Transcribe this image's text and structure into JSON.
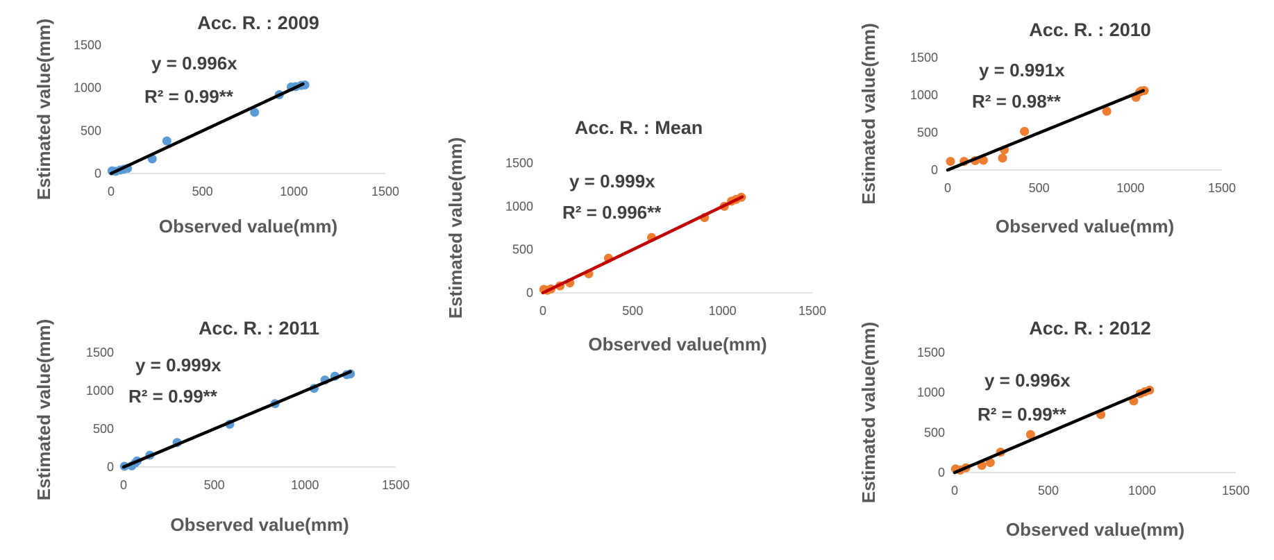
{
  "chart_data": [
    {
      "id": "chart-2009",
      "type": "scatter",
      "title": "Acc. R. : 2009",
      "xlabel": "Observed value(mm)",
      "ylabel": "Estimated value(mm)",
      "xlim": [
        0,
        1500
      ],
      "ylim": [
        0,
        1500
      ],
      "xticks": [
        "0",
        "500",
        "1000",
        "1500"
      ],
      "yticks": [
        "0",
        "500",
        "1000",
        "1500"
      ],
      "grid": false,
      "marker_color": "#5B9BD5",
      "line_color": "#000000",
      "equation": "y = 0.996x",
      "r2": "R² = 0.99**",
      "trendline": {
        "slope": 0.996,
        "x_range": [
          0,
          1050
        ]
      },
      "points": [
        {
          "x": 5,
          "y": 30
        },
        {
          "x": 25,
          "y": 25
        },
        {
          "x": 50,
          "y": 40
        },
        {
          "x": 70,
          "y": 50
        },
        {
          "x": 90,
          "y": 60
        },
        {
          "x": 225,
          "y": 170
        },
        {
          "x": 305,
          "y": 380
        },
        {
          "x": 785,
          "y": 715
        },
        {
          "x": 920,
          "y": 920
        },
        {
          "x": 985,
          "y": 1010
        },
        {
          "x": 1010,
          "y": 1015
        },
        {
          "x": 1040,
          "y": 1030
        },
        {
          "x": 1060,
          "y": 1035
        }
      ]
    },
    {
      "id": "chart-2010",
      "type": "scatter",
      "title": "Acc. R. : 2010",
      "xlabel": "Observed value(mm)",
      "ylabel": "Estimated value(mm)",
      "xlim": [
        0,
        1500
      ],
      "ylim": [
        0,
        1500
      ],
      "xticks": [
        "0",
        "500",
        "1000",
        "1500"
      ],
      "yticks": [
        "0",
        "500",
        "1000",
        "1500"
      ],
      "grid": false,
      "marker_color": "#ED7D31",
      "line_color": "#000000",
      "equation": "y = 0.991x",
      "r2": "R² = 0.98**",
      "trendline": {
        "slope": 0.991,
        "x_range": [
          0,
          1070
        ]
      },
      "points": [
        {
          "x": 15,
          "y": 115
        },
        {
          "x": 90,
          "y": 115
        },
        {
          "x": 150,
          "y": 125
        },
        {
          "x": 195,
          "y": 130
        },
        {
          "x": 300,
          "y": 160
        },
        {
          "x": 310,
          "y": 270
        },
        {
          "x": 420,
          "y": 515
        },
        {
          "x": 870,
          "y": 785
        },
        {
          "x": 1030,
          "y": 970
        },
        {
          "x": 1050,
          "y": 1040
        },
        {
          "x": 1060,
          "y": 1055
        },
        {
          "x": 1075,
          "y": 1060
        }
      ]
    },
    {
      "id": "chart-mean",
      "type": "scatter",
      "title": "Acc. R. : Mean",
      "xlabel": "Observed value(mm)",
      "ylabel": "Estimated value(mm)",
      "xlim": [
        0,
        1500
      ],
      "ylim": [
        0,
        1500
      ],
      "xticks": [
        "0",
        "500",
        "1000",
        "1500"
      ],
      "yticks": [
        "0",
        "500",
        "1000",
        "1500"
      ],
      "grid": false,
      "marker_color": "#ED7D31",
      "line_color": "#C00000",
      "equation": "y = 0.999x",
      "r2": "R² = 0.996**",
      "trendline": {
        "slope": 0.999,
        "x_range": [
          0,
          1110
        ]
      },
      "points": [
        {
          "x": 5,
          "y": 40
        },
        {
          "x": 25,
          "y": 30
        },
        {
          "x": 45,
          "y": 45
        },
        {
          "x": 95,
          "y": 80
        },
        {
          "x": 150,
          "y": 115
        },
        {
          "x": 255,
          "y": 220
        },
        {
          "x": 365,
          "y": 400
        },
        {
          "x": 605,
          "y": 640
        },
        {
          "x": 900,
          "y": 870
        },
        {
          "x": 1010,
          "y": 1000
        },
        {
          "x": 1050,
          "y": 1060
        },
        {
          "x": 1075,
          "y": 1080
        },
        {
          "x": 1105,
          "y": 1105
        }
      ]
    },
    {
      "id": "chart-2011",
      "type": "scatter",
      "title": "Acc. R. : 2011",
      "xlabel": "Observed value(mm)",
      "ylabel": "Estimated value(mm)",
      "xlim": [
        0,
        1500
      ],
      "ylim": [
        0,
        1500
      ],
      "xticks": [
        "0",
        "500",
        "1000",
        "1500"
      ],
      "yticks": [
        "0",
        "500",
        "1000",
        "1500"
      ],
      "grid": false,
      "marker_color": "#5B9BD5",
      "line_color": "#000000",
      "equation": "y = 0.999x",
      "r2": "R² = 0.99**",
      "trendline": {
        "slope": 0.999,
        "x_range": [
          0,
          1250
        ]
      },
      "points": [
        {
          "x": 5,
          "y": 10
        },
        {
          "x": 45,
          "y": 15
        },
        {
          "x": 65,
          "y": 55
        },
        {
          "x": 75,
          "y": 80
        },
        {
          "x": 145,
          "y": 155
        },
        {
          "x": 295,
          "y": 320
        },
        {
          "x": 585,
          "y": 560
        },
        {
          "x": 835,
          "y": 830
        },
        {
          "x": 1050,
          "y": 1030
        },
        {
          "x": 1110,
          "y": 1140
        },
        {
          "x": 1165,
          "y": 1190
        },
        {
          "x": 1230,
          "y": 1210
        },
        {
          "x": 1250,
          "y": 1220
        }
      ]
    },
    {
      "id": "chart-2012",
      "type": "scatter",
      "title": "Acc. R. : 2012",
      "xlabel": "Observed value(mm)",
      "ylabel": "Estimated value(mm)",
      "xlim": [
        0,
        1500
      ],
      "ylim": [
        0,
        1500
      ],
      "xticks": [
        "0",
        "500",
        "1000",
        "1500"
      ],
      "yticks": [
        "0",
        "500",
        "1000",
        "1500"
      ],
      "grid": false,
      "marker_color": "#ED7D31",
      "line_color": "#000000",
      "equation": "y = 0.996x",
      "r2": "R² = 0.99**",
      "trendline": {
        "slope": 0.996,
        "x_range": [
          0,
          1040
        ]
      },
      "points": [
        {
          "x": 5,
          "y": 45
        },
        {
          "x": 30,
          "y": 30
        },
        {
          "x": 60,
          "y": 60
        },
        {
          "x": 145,
          "y": 90
        },
        {
          "x": 190,
          "y": 125
        },
        {
          "x": 245,
          "y": 255
        },
        {
          "x": 405,
          "y": 475
        },
        {
          "x": 780,
          "y": 725
        },
        {
          "x": 955,
          "y": 895
        },
        {
          "x": 990,
          "y": 985
        },
        {
          "x": 1015,
          "y": 1010
        },
        {
          "x": 1040,
          "y": 1030
        }
      ]
    }
  ]
}
